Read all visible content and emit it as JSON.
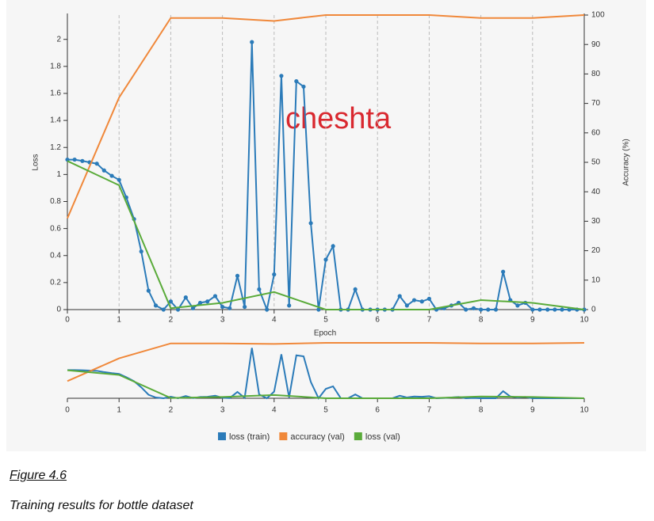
{
  "chart_data": {
    "type": "line",
    "annotation": "cheshta",
    "x_label": "Epoch",
    "y_label": "Loss",
    "y2_label": "Accuracy (%)",
    "xlim": [
      0,
      10
    ],
    "xticks": [
      0,
      1,
      2,
      3,
      4,
      5,
      6,
      7,
      8,
      9,
      10
    ],
    "ylim": [
      0,
      2.18
    ],
    "yticks": [
      0,
      0.2,
      0.4,
      0.6,
      0.8,
      1,
      1.2,
      1.4,
      1.6,
      1.8,
      2
    ],
    "y2lim": [
      0,
      100
    ],
    "y2ticks": [
      0,
      10,
      20,
      30,
      40,
      50,
      60,
      70,
      80,
      90,
      100
    ],
    "grid": "x",
    "legend": "bottom",
    "series": [
      {
        "name": "loss (train)",
        "color": "#2b7bb9",
        "markers": true,
        "x": [
          0,
          0.14,
          0.29,
          0.43,
          0.57,
          0.71,
          0.86,
          1,
          1.14,
          1.29,
          1.43,
          1.57,
          1.71,
          1.86,
          2,
          2.14,
          2.29,
          2.43,
          2.57,
          2.71,
          2.86,
          3,
          3.14,
          3.29,
          3.43,
          3.57,
          3.71,
          3.86,
          4,
          4.14,
          4.29,
          4.43,
          4.57,
          4.71,
          4.86,
          5,
          5.14,
          5.29,
          5.43,
          5.57,
          5.71,
          5.86,
          6,
          6.14,
          6.29,
          6.43,
          6.57,
          6.71,
          6.86,
          7,
          7.14,
          7.29,
          7.43,
          7.57,
          7.71,
          7.86,
          8,
          8.14,
          8.29,
          8.43,
          8.57,
          8.71,
          8.86,
          9,
          9.14,
          9.29,
          9.43,
          9.57,
          9.71,
          9.86,
          10
        ],
        "values": [
          1.11,
          1.11,
          1.1,
          1.09,
          1.08,
          1.03,
          0.99,
          0.96,
          0.83,
          0.67,
          0.43,
          0.14,
          0.03,
          0,
          0.06,
          0,
          0.09,
          0.01,
          0.05,
          0.06,
          0.1,
          0.02,
          0.01,
          0.25,
          0.02,
          1.98,
          0.15,
          0,
          0.26,
          1.73,
          0.03,
          1.69,
          1.65,
          0.64,
          0,
          0.37,
          0.47,
          0,
          0,
          0.15,
          0,
          0,
          0,
          0,
          0,
          0.1,
          0.03,
          0.07,
          0.06,
          0.08,
          0,
          0.01,
          0.03,
          0.05,
          0,
          0.01,
          0,
          0,
          0,
          0.28,
          0.07,
          0.03,
          0.05,
          0,
          0,
          0,
          0,
          0,
          0,
          0,
          0
        ]
      },
      {
        "name": "accuracy (val)",
        "color": "#f0883a",
        "axis": "y2",
        "markers": false,
        "x": [
          0,
          1,
          2,
          3,
          4,
          5,
          6,
          7,
          8,
          9,
          10
        ],
        "values": [
          31,
          72,
          99,
          99,
          98,
          100,
          100,
          100,
          99,
          99,
          100
        ]
      },
      {
        "name": "loss (val)",
        "color": "#5aab3a",
        "markers": false,
        "x": [
          0,
          1,
          2,
          3,
          4,
          5,
          6,
          7,
          8,
          9,
          10
        ],
        "values": [
          1.1,
          0.92,
          0.01,
          0.05,
          0.13,
          0,
          0,
          0,
          0.07,
          0.05,
          0
        ]
      }
    ]
  },
  "figure": {
    "label": "Figure 4.6",
    "caption": "Training results for bottle dataset"
  }
}
